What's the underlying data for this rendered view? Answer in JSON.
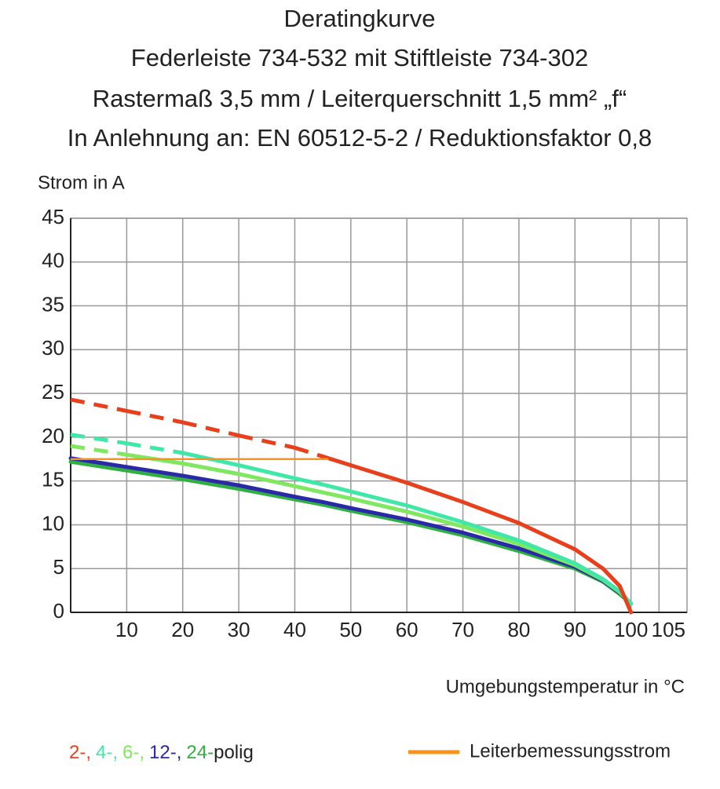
{
  "chart_data": {
    "type": "line",
    "title": [
      "Deratingkurve",
      "Federleiste 734-532 mit Stiftleiste 734-302",
      "Rastermaß 3,5 mm / Leiterquerschnitt 1,5 mm² „f“",
      "In Anlehnung an: EN 60512-5-2 / Reduktionsfaktor 0,8"
    ],
    "y_label": "Strom in A",
    "x_label": "Umgebungstemperatur in °C",
    "xlim": [
      0,
      110
    ],
    "ylim": [
      0,
      45
    ],
    "xticks": [
      10,
      20,
      30,
      40,
      50,
      60,
      70,
      80,
      90,
      100,
      105
    ],
    "yticks": [
      0,
      5,
      10,
      15,
      20,
      25,
      30,
      35,
      40,
      45
    ],
    "grid": true,
    "x": [
      0,
      10,
      20,
      30,
      40,
      45,
      50,
      60,
      70,
      80,
      90,
      95,
      98,
      100
    ],
    "series": [
      {
        "name": "2-,",
        "color": "#e8401c",
        "values": [
          24.3,
          23,
          21.7,
          20.2,
          18.8,
          17.8,
          16.8,
          14.8,
          12.6,
          10.2,
          7.2,
          5,
          3,
          0
        ]
      },
      {
        "name": "4-,",
        "color": "#40e8a8",
        "values": [
          20.3,
          19.3,
          18.2,
          16.8,
          15.3,
          14.6,
          13.8,
          12.2,
          10.3,
          8.2,
          5.6,
          3.8,
          2.4,
          1
        ]
      },
      {
        "name": "6-,",
        "color": "#80e860",
        "values": [
          19,
          18,
          17,
          15.8,
          14.4,
          13.7,
          13,
          11.5,
          9.8,
          7.8,
          5.4,
          3.7,
          2.3,
          1
        ]
      },
      {
        "name": "12-,",
        "color": "#2a2aa8",
        "values": [
          17.6,
          16.6,
          15.6,
          14.5,
          13.2,
          12.6,
          11.9,
          10.6,
          9.1,
          7.3,
          5.2,
          3.6,
          2.2,
          1
        ]
      },
      {
        "name": "24-",
        "color": "#30b040",
        "values": [
          17.2,
          16.2,
          15.2,
          14.1,
          12.9,
          12.3,
          11.6,
          10.3,
          8.8,
          7,
          5,
          3.5,
          2.1,
          1
        ]
      }
    ],
    "legend_suffix": "polig",
    "rated_current": {
      "name": "Leiterbemessungsstrom",
      "color": "#f7941d",
      "value": 17.5,
      "x_end": 46
    }
  }
}
